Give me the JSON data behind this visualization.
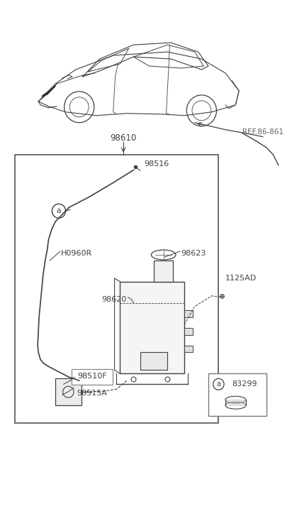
{
  "bg_color": "#ffffff",
  "fig_width": 4.12,
  "fig_height": 7.27,
  "dpi": 100,
  "labels": {
    "ref_86_861": "REF.86-861",
    "98610": "98610",
    "98516": "98516",
    "98623": "98623",
    "98620": "98620",
    "1125AD": "1125AD",
    "H0960R": "H0960R",
    "98510F": "98510F",
    "98515A": "98515A",
    "a_label": "a",
    "83299": "83299"
  },
  "text_color": "#404040",
  "line_color": "#404040",
  "box_border_color": "#888888"
}
